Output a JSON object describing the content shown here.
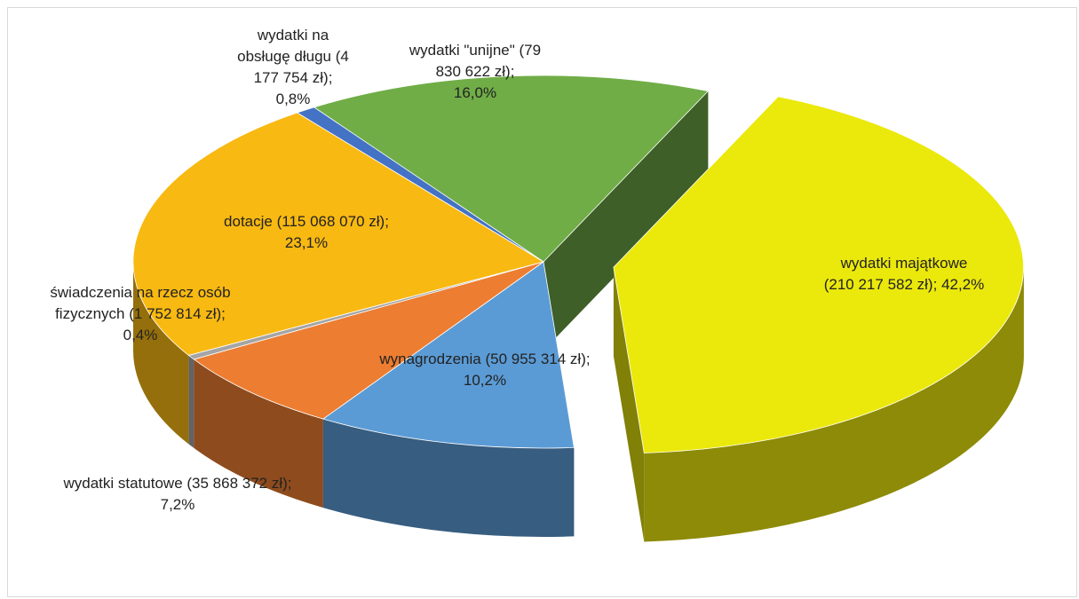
{
  "chart_data": {
    "type": "pie",
    "categories": [
      "wydatki \"unijne\"",
      "wydatki majątkowe",
      "wynagrodzenia",
      "wydatki statutowe",
      "świadczenia na rzecz osób fizycznych",
      "dotacje",
      "wydatki na obsługę długu"
    ],
    "values": [
      16.0,
      42.2,
      10.2,
      7.2,
      0.4,
      23.1,
      0.8
    ],
    "value_labels": [
      "16,0%",
      "42,2%",
      "10,2%",
      "7,2%",
      "0,4%",
      "23,1%",
      "0,8%"
    ],
    "amount_labels": [
      "(79 830 622 zł);",
      "(210 217 582 zł);",
      "(50 955 314 zł);",
      "(35 868 372 zł);",
      "(1 752 814 zł);",
      "(115 068 070 zł);",
      "(4 177 754 zł);"
    ],
    "colors": [
      "#70ad47",
      "#ebe80c",
      "#5b9bd5",
      "#ed7d31",
      "#a5a5a5",
      "#f8b912",
      "#4472c4"
    ]
  }
}
